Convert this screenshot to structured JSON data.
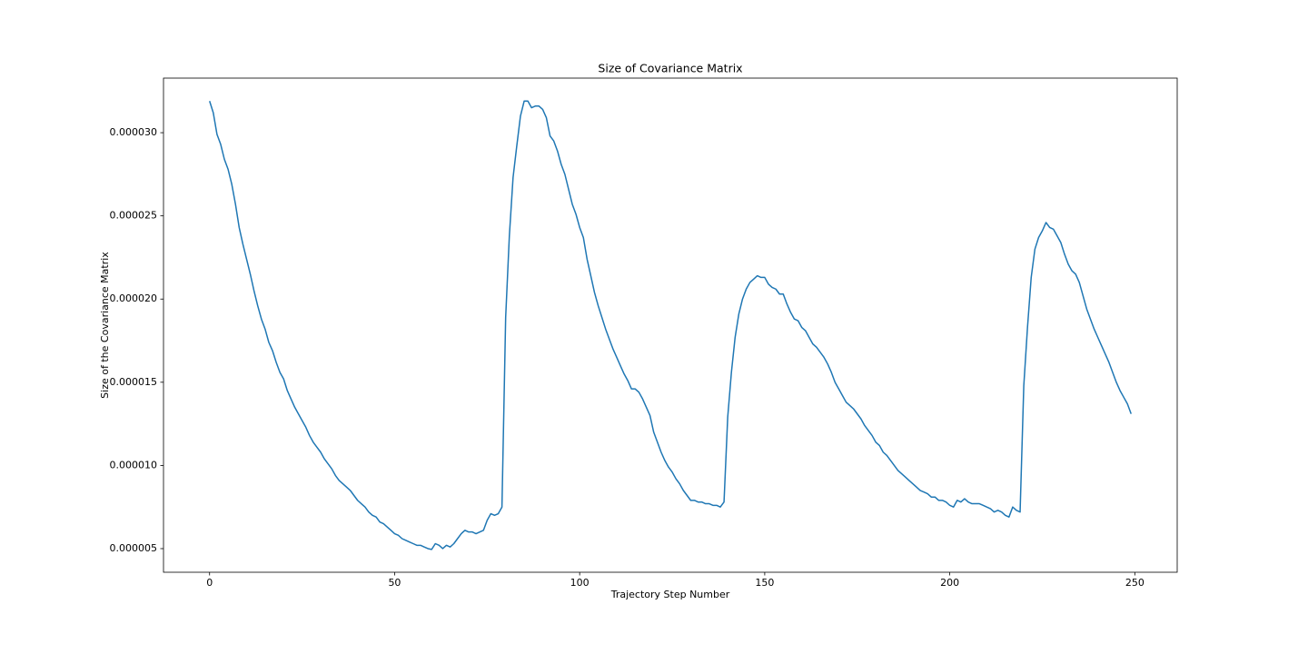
{
  "chart_data": {
    "type": "line",
    "title": "Size of Covariance Matrix",
    "x_label": "Trajectory Step Number",
    "y_label": "Size of the Covariance Matrix",
    "color": "#1f77b4",
    "x": [
      0,
      1,
      2,
      3,
      4,
      5,
      6,
      7,
      8,
      9,
      10,
      11,
      12,
      13,
      14,
      15,
      16,
      17,
      18,
      19,
      20,
      21,
      22,
      23,
      24,
      25,
      26,
      27,
      28,
      29,
      30,
      31,
      32,
      33,
      34,
      35,
      36,
      37,
      38,
      39,
      40,
      41,
      42,
      43,
      44,
      45,
      46,
      47,
      48,
      49,
      50,
      51,
      52,
      53,
      54,
      55,
      56,
      57,
      58,
      59,
      60,
      61,
      62,
      63,
      64,
      65,
      66,
      67,
      68,
      69,
      70,
      71,
      72,
      73,
      74,
      75,
      76,
      77,
      78,
      79,
      80,
      81,
      82,
      83,
      84,
      85,
      86,
      87,
      88,
      89,
      90,
      91,
      92,
      93,
      94,
      95,
      96,
      97,
      98,
      99,
      100,
      101,
      102,
      103,
      104,
      105,
      106,
      107,
      108,
      109,
      110,
      111,
      112,
      113,
      114,
      115,
      116,
      117,
      118,
      119,
      120,
      121,
      122,
      123,
      124,
      125,
      126,
      127,
      128,
      129,
      130,
      131,
      132,
      133,
      134,
      135,
      136,
      137,
      138,
      139,
      140,
      141,
      142,
      143,
      144,
      145,
      146,
      147,
      148,
      149,
      150,
      151,
      152,
      153,
      154,
      155,
      156,
      157,
      158,
      159,
      160,
      161,
      162,
      163,
      164,
      165,
      166,
      167,
      168,
      169,
      170,
      171,
      172,
      173,
      174,
      175,
      176,
      177,
      178,
      179,
      180,
      181,
      182,
      183,
      184,
      185,
      186,
      187,
      188,
      189,
      190,
      191,
      192,
      193,
      194,
      195,
      196,
      197,
      198,
      199,
      200,
      201,
      202,
      203,
      204,
      205,
      206,
      207,
      208,
      209,
      210,
      211,
      212,
      213,
      214,
      215,
      216,
      217,
      218,
      219,
      220,
      221,
      222,
      223,
      224,
      225,
      226,
      227,
      228,
      229,
      230,
      231,
      232,
      233,
      234,
      235,
      236,
      237,
      238,
      239,
      240,
      241,
      242,
      243,
      244,
      245,
      246,
      247,
      248,
      249
    ],
    "values": [
      3.19e-05,
      3.12e-05,
      2.99e-05,
      2.93e-05,
      2.84e-05,
      2.78e-05,
      2.69e-05,
      2.57e-05,
      2.43e-05,
      2.33e-05,
      2.24e-05,
      2.15e-05,
      2.05e-05,
      1.96e-05,
      1.88e-05,
      1.82e-05,
      1.74e-05,
      1.69e-05,
      1.62e-05,
      1.56e-05,
      1.52e-05,
      1.45e-05,
      1.4e-05,
      1.35e-05,
      1.31e-05,
      1.27e-05,
      1.23e-05,
      1.18e-05,
      1.14e-05,
      1.11e-05,
      1.08e-05,
      1.04e-05,
      1.01e-05,
      9.8e-06,
      9.4e-06,
      9.1e-06,
      8.9e-06,
      8.7e-06,
      8.5e-06,
      8.2e-06,
      7.9e-06,
      7.7e-06,
      7.5e-06,
      7.2e-06,
      7e-06,
      6.9e-06,
      6.6e-06,
      6.5e-06,
      6.3e-06,
      6.1e-06,
      5.9e-06,
      5.8e-06,
      5.6e-06,
      5.5e-06,
      5.4e-06,
      5.3e-06,
      5.2e-06,
      5.2e-06,
      5.1e-06,
      5e-06,
      4.95e-06,
      5.3e-06,
      5.2e-06,
      5e-06,
      5.2e-06,
      5.1e-06,
      5.3e-06,
      5.6e-06,
      5.9e-06,
      6.1e-06,
      6e-06,
      6e-06,
      5.9e-06,
      6e-06,
      6.1e-06,
      6.7e-06,
      7.1e-06,
      7e-06,
      7.1e-06,
      7.5e-06,
      1.89e-05,
      2.38e-05,
      2.73e-05,
      2.92e-05,
      3.1e-05,
      3.19e-05,
      3.19e-05,
      3.15e-05,
      3.16e-05,
      3.16e-05,
      3.14e-05,
      3.09e-05,
      2.98e-05,
      2.95e-05,
      2.89e-05,
      2.81e-05,
      2.75e-05,
      2.66e-05,
      2.57e-05,
      2.51e-05,
      2.43e-05,
      2.37e-05,
      2.24e-05,
      2.14e-05,
      2.04e-05,
      1.96e-05,
      1.89e-05,
      1.82e-05,
      1.76e-05,
      1.7e-05,
      1.65e-05,
      1.6e-05,
      1.55e-05,
      1.51e-05,
      1.46e-05,
      1.46e-05,
      1.44e-05,
      1.4e-05,
      1.35e-05,
      1.3e-05,
      1.2e-05,
      1.14e-05,
      1.08e-05,
      1.03e-05,
      9.9e-06,
      9.6e-06,
      9.2e-06,
      8.9e-06,
      8.5e-06,
      8.2e-06,
      7.9e-06,
      7.9e-06,
      7.8e-06,
      7.8e-06,
      7.7e-06,
      7.7e-06,
      7.6e-06,
      7.6e-06,
      7.5e-06,
      7.8e-06,
      1.29e-05,
      1.56e-05,
      1.77e-05,
      1.91e-05,
      2e-05,
      2.06e-05,
      2.1e-05,
      2.12e-05,
      2.14e-05,
      2.13e-05,
      2.13e-05,
      2.09e-05,
      2.07e-05,
      2.06e-05,
      2.03e-05,
      2.03e-05,
      1.97e-05,
      1.92e-05,
      1.88e-05,
      1.87e-05,
      1.83e-05,
      1.81e-05,
      1.77e-05,
      1.73e-05,
      1.71e-05,
      1.68e-05,
      1.65e-05,
      1.61e-05,
      1.56e-05,
      1.5e-05,
      1.46e-05,
      1.42e-05,
      1.38e-05,
      1.36e-05,
      1.34e-05,
      1.31e-05,
      1.28e-05,
      1.24e-05,
      1.21e-05,
      1.18e-05,
      1.14e-05,
      1.12e-05,
      1.08e-05,
      1.06e-05,
      1.03e-05,
      1e-05,
      9.7e-06,
      9.5e-06,
      9.3e-06,
      9.1e-06,
      8.9e-06,
      8.7e-06,
      8.5e-06,
      8.4e-06,
      8.3e-06,
      8.1e-06,
      8.1e-06,
      7.9e-06,
      7.9e-06,
      7.8e-06,
      7.6e-06,
      7.5e-06,
      7.9e-06,
      7.8e-06,
      8e-06,
      7.8e-06,
      7.7e-06,
      7.7e-06,
      7.7e-06,
      7.6e-06,
      7.5e-06,
      7.4e-06,
      7.2e-06,
      7.3e-06,
      7.2e-06,
      7e-06,
      6.9e-06,
      7.5e-06,
      7.3e-06,
      7.2e-06,
      1.48e-05,
      1.83e-05,
      2.13e-05,
      2.3e-05,
      2.37e-05,
      2.41e-05,
      2.46e-05,
      2.43e-05,
      2.42e-05,
      2.38e-05,
      2.34e-05,
      2.27e-05,
      2.21e-05,
      2.17e-05,
      2.15e-05,
      2.1e-05,
      2.02e-05,
      1.94e-05,
      1.88e-05,
      1.82e-05,
      1.77e-05,
      1.72e-05,
      1.67e-05,
      1.62e-05,
      1.56e-05,
      1.5e-05,
      1.45e-05,
      1.41e-05,
      1.37e-05,
      1.31e-05
    ],
    "xlim": [
      -12.45,
      261.45
    ],
    "xticks": [
      0,
      50,
      100,
      150,
      200,
      250
    ],
    "ylim": [
      3.58e-06,
      3.328e-05
    ],
    "yticks": [
      {
        "value": 5e-06,
        "label": "0.000005"
      },
      {
        "value": 1e-05,
        "label": "0.000010"
      },
      {
        "value": 1.5e-05,
        "label": "0.000015"
      },
      {
        "value": 2e-05,
        "label": "0.000020"
      },
      {
        "value": 2.5e-05,
        "label": "0.000025"
      },
      {
        "value": 3e-05,
        "label": "0.000030"
      }
    ],
    "grid": false
  }
}
